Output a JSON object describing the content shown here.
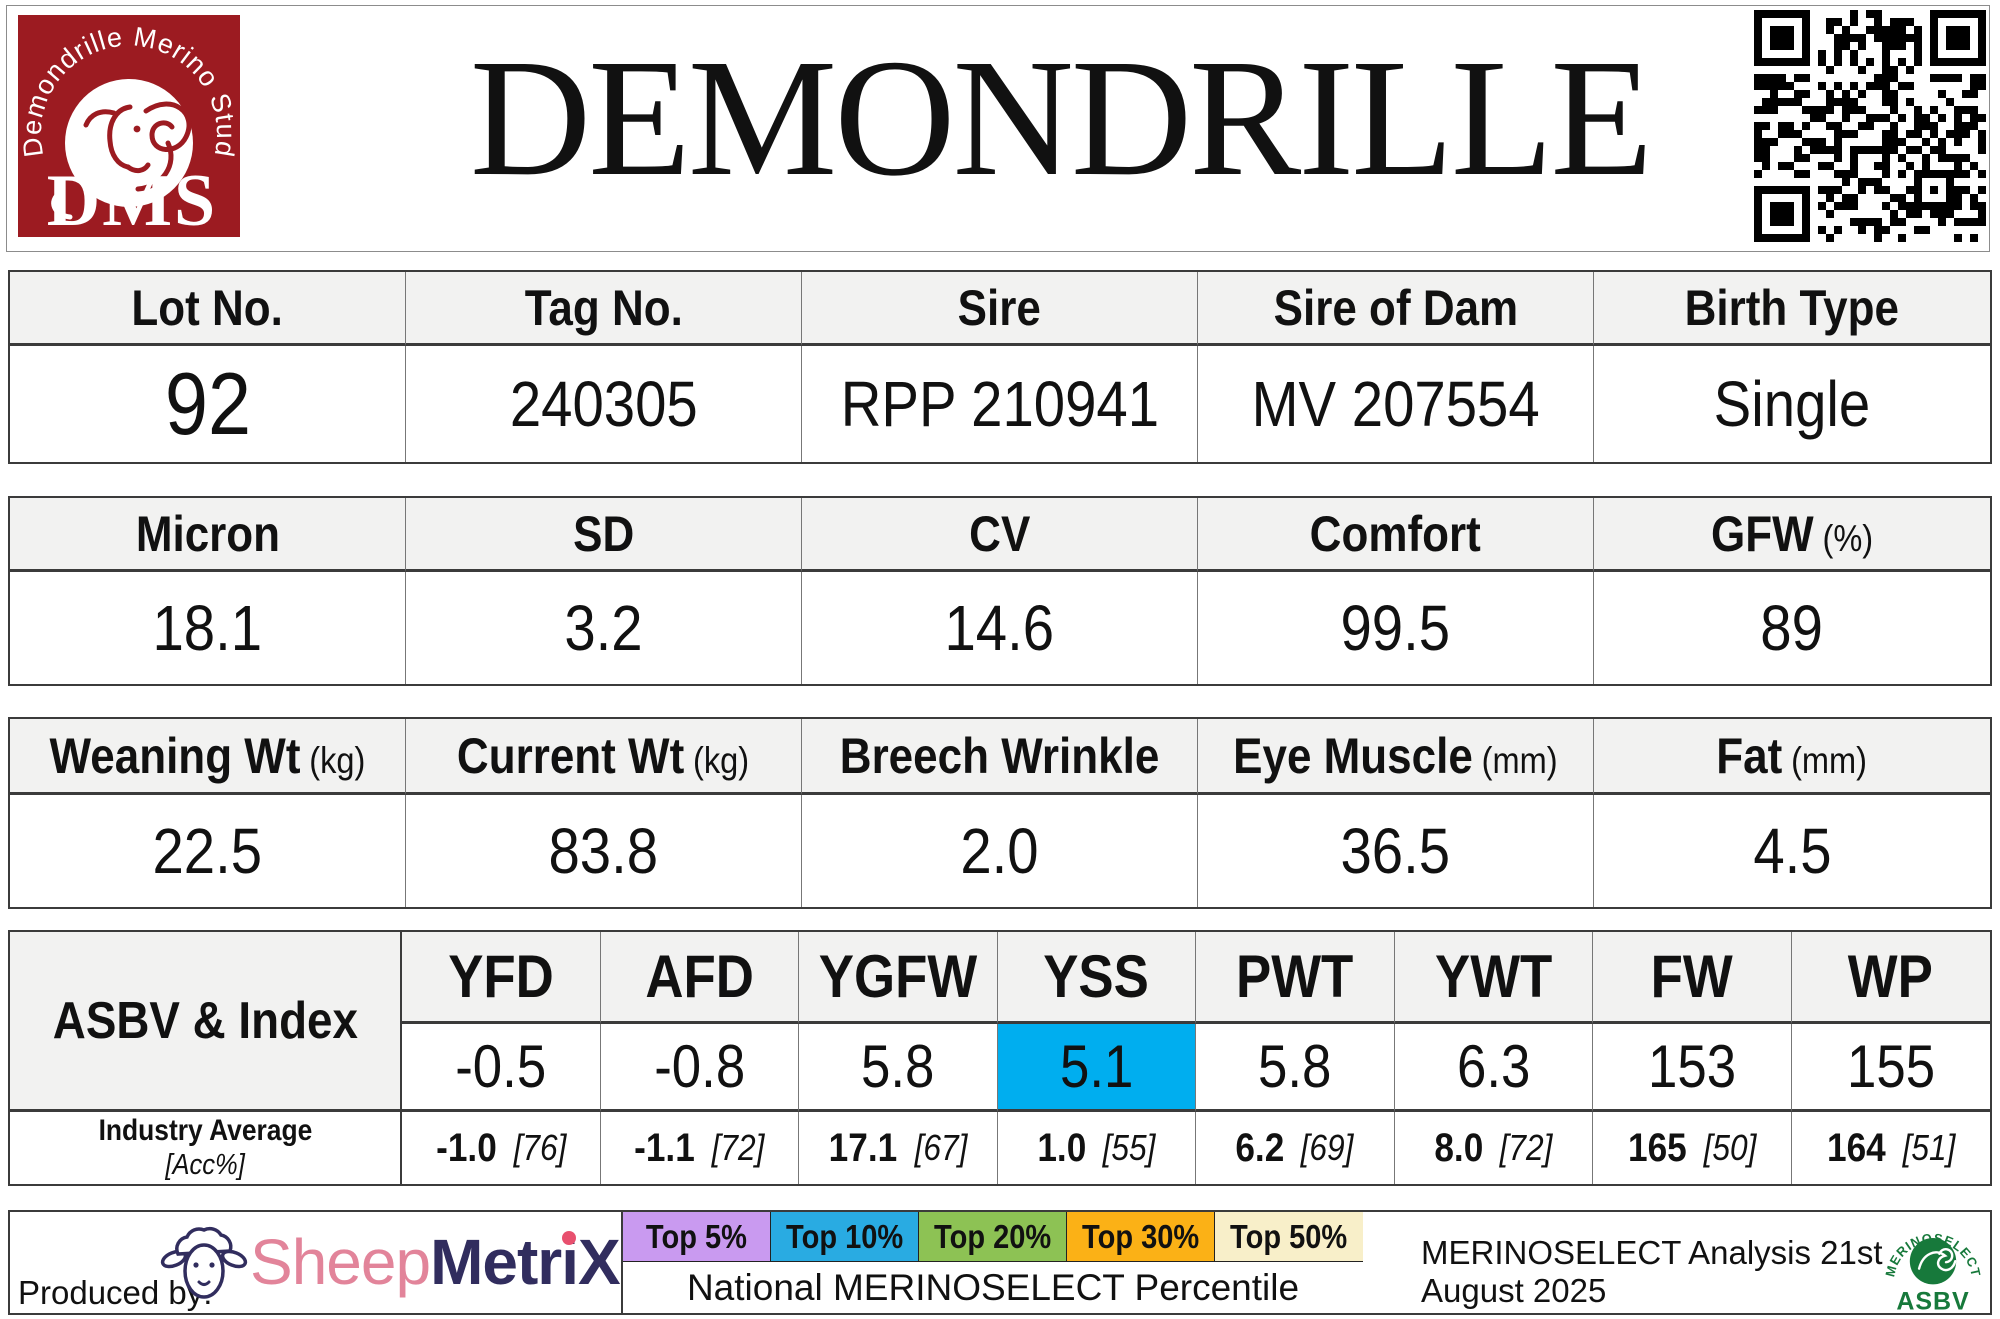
{
  "header": {
    "title": "DEMONDRILLE",
    "logo": {
      "arc_text": "Demondrille Merino Stud",
      "acronym": "DMS"
    },
    "qr": "qr-code"
  },
  "info_table": {
    "columns": [
      {
        "label": "Lot No.",
        "value": "92"
      },
      {
        "label": "Tag No.",
        "value": "240305"
      },
      {
        "label": "Sire",
        "value": "RPP 210941"
      },
      {
        "label": "Sire of Dam",
        "value": "MV 207554"
      },
      {
        "label": "Birth Type",
        "value": "Single"
      }
    ]
  },
  "wool_table": {
    "columns": [
      {
        "label": "Micron",
        "value": "18.1"
      },
      {
        "label": "SD",
        "value": "3.2"
      },
      {
        "label": "CV",
        "value": "14.6"
      },
      {
        "label": "Comfort",
        "value": "99.5"
      },
      {
        "label": "GFW",
        "unit": "(%)",
        "value": "89"
      }
    ]
  },
  "body_table": {
    "columns": [
      {
        "label": "Weaning Wt",
        "unit": "(kg)",
        "value": "22.5"
      },
      {
        "label": "Current Wt",
        "unit": "(kg)",
        "value": "83.8"
      },
      {
        "label": "Breech Wrinkle",
        "value": "2.0"
      },
      {
        "label": "Eye Muscle",
        "unit": "(mm)",
        "value": "36.5"
      },
      {
        "label": "Fat",
        "unit": "(mm)",
        "value": "4.5"
      }
    ]
  },
  "asbv": {
    "row_label": "ASBV & Index",
    "industry_label": "Industry Average",
    "industry_sub": "[Acc%]",
    "highlight_color": "#00AEEF",
    "columns": [
      {
        "trait": "YFD",
        "value": "-0.5",
        "industry": "-1.0",
        "acc": "[76]"
      },
      {
        "trait": "AFD",
        "value": "-0.8",
        "industry": "-1.1",
        "acc": "[72]"
      },
      {
        "trait": "YGFW",
        "value": "5.8",
        "industry": "17.1",
        "acc": "[67]"
      },
      {
        "trait": "YSS",
        "value": "5.1",
        "industry": "1.0",
        "acc": "[55]",
        "highlight": true
      },
      {
        "trait": "PWT",
        "value": "5.8",
        "industry": "6.2",
        "acc": "[69]"
      },
      {
        "trait": "YWT",
        "value": "6.3",
        "industry": "8.0",
        "acc": "[72]"
      },
      {
        "trait": "FW",
        "value": "153",
        "industry": "165",
        "acc": "[50]"
      },
      {
        "trait": "WP",
        "value": "155",
        "industry": "164",
        "acc": "[51]"
      }
    ]
  },
  "footer": {
    "produced_by": "Produced by:",
    "sheepmetrix": {
      "part1": "Sheep",
      "part2": "MetriX"
    },
    "legend": [
      {
        "label": "Top 5%",
        "color": "#C99AF0"
      },
      {
        "label": "Top 10%",
        "color": "#29ABE2"
      },
      {
        "label": "Top 20%",
        "color": "#8DC254"
      },
      {
        "label": "Top 30%",
        "color": "#FBB116"
      },
      {
        "label": "Top 50%",
        "color": "#F8EFC9"
      }
    ],
    "legend_caption": "National MERINOSELECT Percentile",
    "analysis_note": "MERINOSELECT Analysis 21st August 2025",
    "asbv_logo": {
      "arc_text": "MERINOSELECT",
      "text": "ASBV"
    }
  },
  "colors": {
    "dms_red": "#9C1B21",
    "navy": "#312D5E",
    "pink": "#E2849A",
    "pink_accent": "#E8506E",
    "ms_green": "#17793B",
    "header_gray": "#F2F2F1"
  }
}
